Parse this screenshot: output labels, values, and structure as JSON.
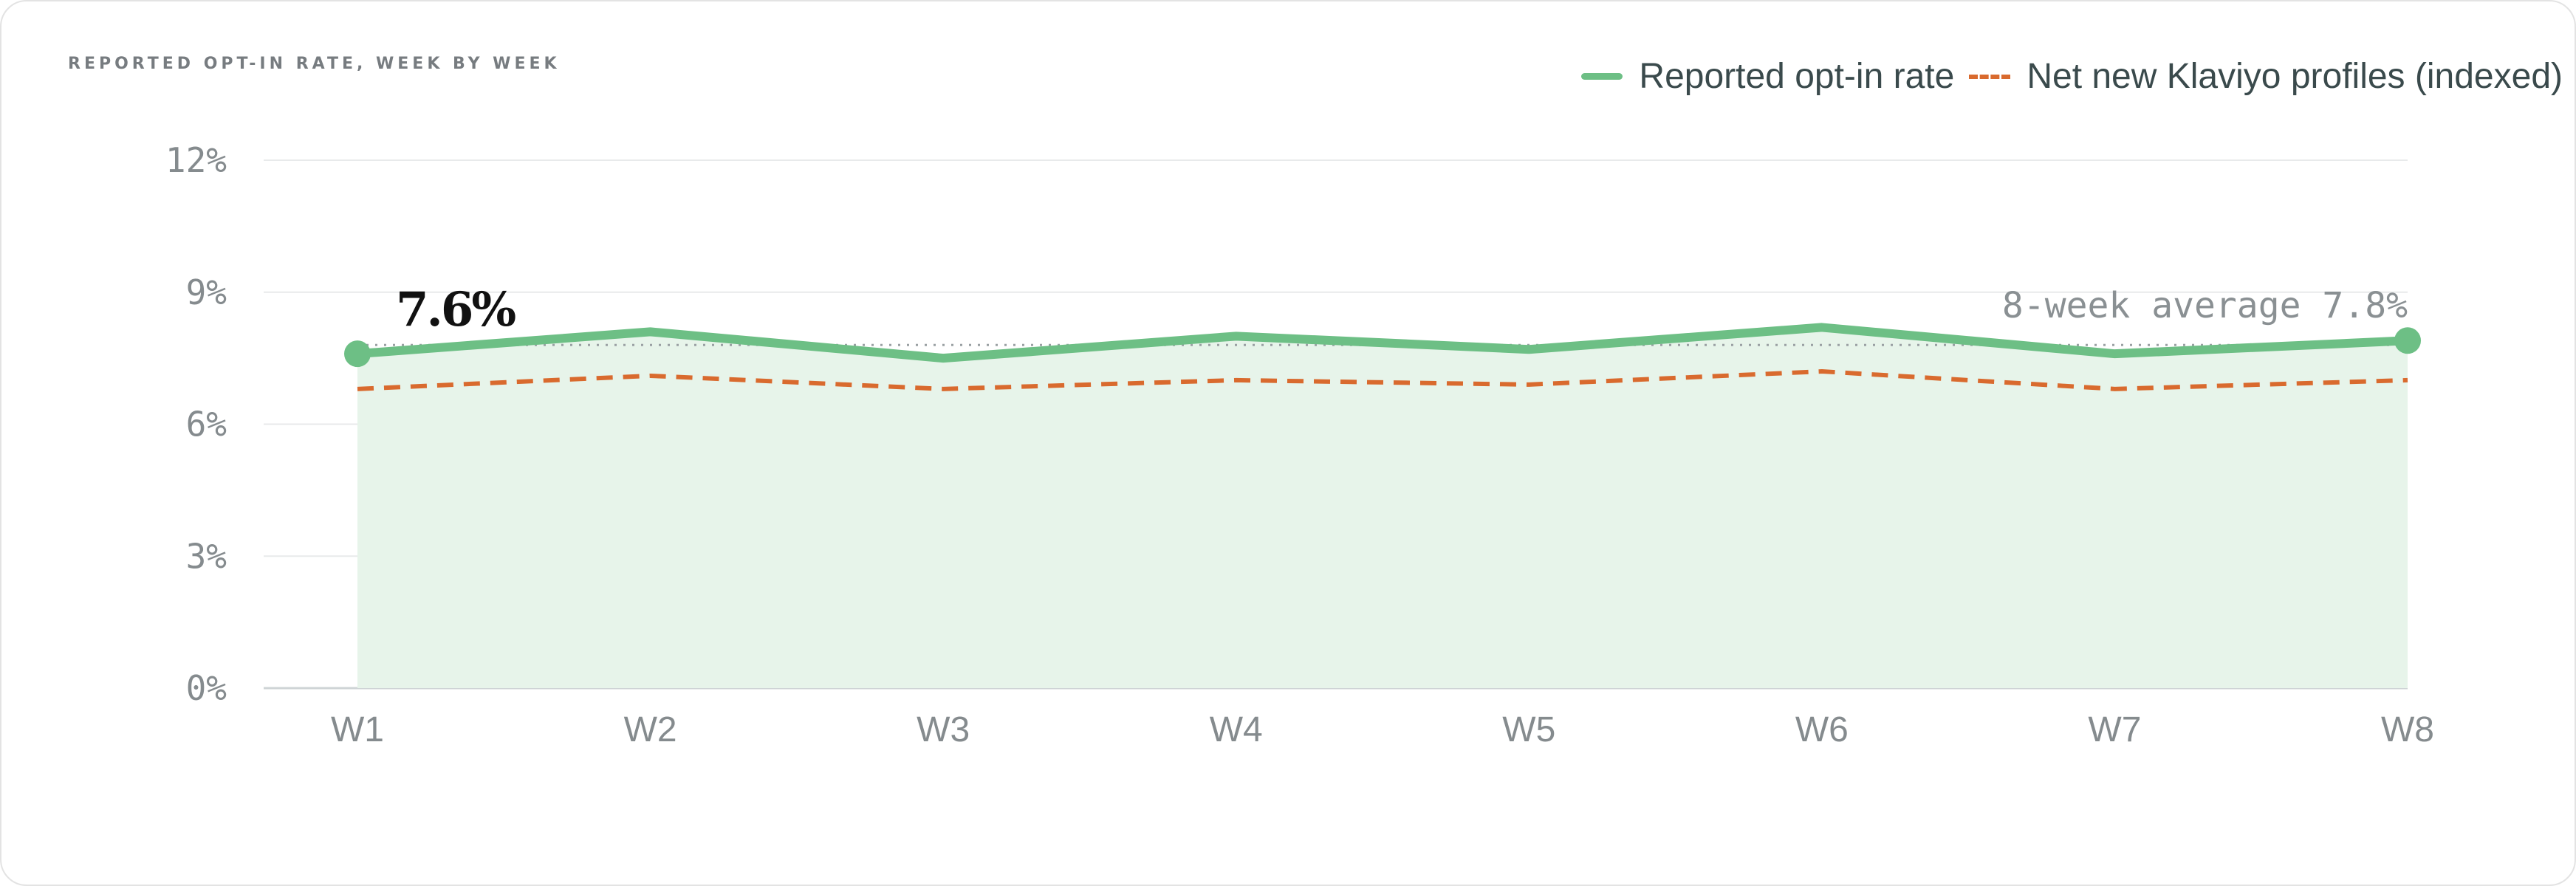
{
  "chart_data": {
    "type": "line",
    "title": "REPORTED OPT-IN RATE, WEEK BY WEEK",
    "categories": [
      "W1",
      "W2",
      "W3",
      "W4",
      "W5",
      "W6",
      "W7",
      "W8"
    ],
    "y_ticks": [
      "0%",
      "3%",
      "6%",
      "9%",
      "12%"
    ],
    "ylim": [
      0,
      12
    ],
    "grid": true,
    "legend_position": "top-right",
    "series": [
      {
        "name": "Reported opt-in rate",
        "values": [
          7.6,
          8.1,
          7.5,
          8.0,
          7.7,
          8.2,
          7.6,
          7.9
        ],
        "color": "#6dbf85",
        "style": "solid",
        "fill": "#e7f4ea"
      },
      {
        "name": "Net new Klaviyo profiles (indexed)",
        "values": [
          6.8,
          7.1,
          6.8,
          7.0,
          6.9,
          7.2,
          6.8,
          7.0
        ],
        "color": "#d96a2e",
        "style": "dashed"
      }
    ],
    "average": {
      "value": 7.8,
      "label": "8-week average 7.8%"
    },
    "callout": {
      "label": "7.6%",
      "category": "W1"
    }
  }
}
